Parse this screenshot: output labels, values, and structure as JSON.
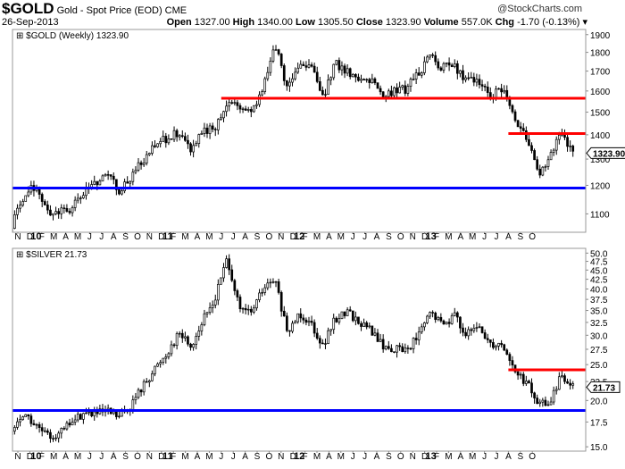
{
  "header": {
    "symbol": "$GOLD",
    "name": "Gold - Spot Price (EOD)",
    "exchange": "CME",
    "copyright": "@StockCharts.com",
    "date": "26-Sep-2013",
    "open_label": "Open",
    "open": "1327.00",
    "high_label": "High",
    "high": "1340.00",
    "low_label": "Low",
    "low": "1305.50",
    "close_label": "Close",
    "close": "1323.90",
    "volume_label": "Volume",
    "volume": "557.0K",
    "chg_label": "Chg",
    "chg": "-1.70 (-0.13%)"
  },
  "chart_data": [
    {
      "type": "candlestick",
      "title": "$GOLD (Weekly) 1323.90",
      "scale": "log",
      "ylim": [
        1040,
        1930
      ],
      "yticks": [
        1100,
        1200,
        1300,
        1400,
        1500,
        1600,
        1700,
        1800,
        1900
      ],
      "last_value_label": "1323.90",
      "months": [
        "2009-10",
        "2009-11",
        "2009-12",
        "2010-01",
        "2010-02",
        "2010-03",
        "2010-04",
        "2010-05",
        "2010-06",
        "2010-07",
        "2010-08",
        "2010-09",
        "2010-10",
        "2010-11",
        "2010-12",
        "2011-01",
        "2011-02",
        "2011-03",
        "2011-04",
        "2011-05",
        "2011-06",
        "2011-07",
        "2011-08",
        "2011-09",
        "2011-10",
        "2011-11",
        "2011-12",
        "2012-01",
        "2012-02",
        "2012-03",
        "2012-04",
        "2012-05",
        "2012-06",
        "2012-07",
        "2012-08",
        "2012-09",
        "2012-10",
        "2012-11",
        "2012-12",
        "2013-01",
        "2013-02",
        "2013-03",
        "2013-04",
        "2013-05",
        "2013-06",
        "2013-07",
        "2013-08",
        "2013-09"
      ],
      "monthly_close": [
        1060,
        1160,
        1200,
        1100,
        1110,
        1115,
        1170,
        1210,
        1250,
        1180,
        1230,
        1300,
        1350,
        1390,
        1410,
        1340,
        1410,
        1430,
        1550,
        1530,
        1500,
        1620,
        1830,
        1620,
        1720,
        1750,
        1570,
        1740,
        1700,
        1660,
        1660,
        1560,
        1600,
        1610,
        1690,
        1775,
        1720,
        1720,
        1660,
        1660,
        1580,
        1600,
        1470,
        1390,
        1230,
        1320,
        1400,
        1323.9
      ],
      "hlines": [
        {
          "value": 1565,
          "color": "#ff0000",
          "from": "2011-04"
        },
        {
          "value": 1405,
          "color": "#ff0000",
          "from": "2013-04"
        },
        {
          "value": 1190,
          "color": "#0000ff",
          "from": "2009-10"
        }
      ]
    },
    {
      "type": "candlestick",
      "title": "$SILVER  21.73",
      "scale": "log",
      "ylim": [
        14.6,
        51.5
      ],
      "yticks": [
        15.0,
        17.5,
        20.0,
        22.5,
        25.0,
        27.5,
        30.0,
        32.5,
        35.0,
        37.5,
        40.0,
        42.5,
        45.0,
        47.5,
        50.0
      ],
      "last_value_label": "21.73",
      "months": [
        "2009-10",
        "2009-11",
        "2009-12",
        "2010-01",
        "2010-02",
        "2010-03",
        "2010-04",
        "2010-05",
        "2010-06",
        "2010-07",
        "2010-08",
        "2010-09",
        "2010-10",
        "2010-11",
        "2010-12",
        "2011-01",
        "2011-02",
        "2011-03",
        "2011-04",
        "2011-05",
        "2011-06",
        "2011-07",
        "2011-08",
        "2011-09",
        "2011-10",
        "2011-11",
        "2011-12",
        "2012-01",
        "2012-02",
        "2012-03",
        "2012-04",
        "2012-05",
        "2012-06",
        "2012-07",
        "2012-08",
        "2012-09",
        "2012-10",
        "2012-11",
        "2012-12",
        "2013-01",
        "2013-02",
        "2013-03",
        "2013-04",
        "2013-05",
        "2013-06",
        "2013-07",
        "2013-08",
        "2013-09"
      ],
      "monthly_close": [
        16.5,
        18.5,
        17,
        16,
        16.3,
        17.5,
        18.5,
        18.4,
        18.6,
        18,
        19.5,
        22,
        24.5,
        27,
        30.5,
        28,
        33,
        37.8,
        48.5,
        35,
        34.5,
        40,
        42,
        30,
        34.5,
        32.5,
        28,
        33,
        35,
        32.5,
        31,
        28,
        27.5,
        27.5,
        30,
        34.5,
        32,
        34,
        30,
        31.5,
        28.5,
        28.5,
        24,
        22.3,
        19.5,
        19.8,
        23.5,
        21.73
      ],
      "hlines": [
        {
          "value": 24.2,
          "color": "#ff0000",
          "from": "2013-04"
        },
        {
          "value": 18.8,
          "color": "#0000ff",
          "from": "2009-10"
        }
      ]
    }
  ],
  "x_axis_labels": [
    "N",
    "D",
    "10",
    "F",
    "M",
    "A",
    "M",
    "J",
    "J",
    "A",
    "S",
    "O",
    "N",
    "D",
    "11",
    "F",
    "M",
    "A",
    "M",
    "J",
    "J",
    "A",
    "S",
    "O",
    "N",
    "D",
    "12",
    "F",
    "M",
    "A",
    "M",
    "J",
    "J",
    "A",
    "S",
    "O",
    "N",
    "D",
    "13",
    "F",
    "M",
    "A",
    "M",
    "J",
    "J",
    "A",
    "S",
    "O"
  ],
  "colors": {
    "support": "#0000ff",
    "resistance": "#ff0000",
    "candle": "#000000"
  }
}
